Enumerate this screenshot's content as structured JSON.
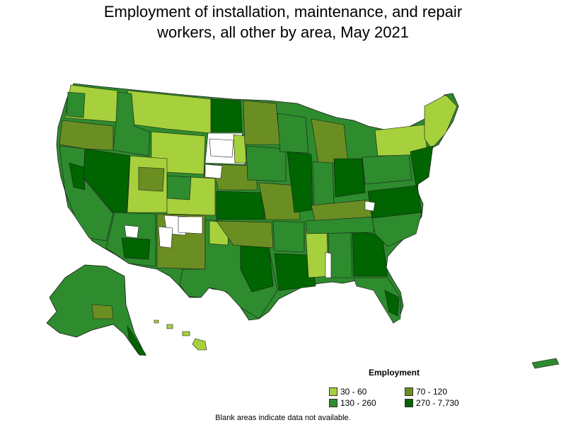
{
  "title_line1": "Employment of installation, maintenance, and repair",
  "title_line2": "workers, all other by area, May 2021",
  "legend": {
    "title": "Employment",
    "items": [
      {
        "label": "30 - 60",
        "color": "#a6d13c"
      },
      {
        "label": "70 - 120",
        "color": "#6b8e23"
      },
      {
        "label": "130 - 260",
        "color": "#2e8b2e"
      },
      {
        "label": "270 - 7,730",
        "color": "#006400"
      }
    ]
  },
  "footnote": "Blank areas indicate data not available.",
  "colors": {
    "c1": "#a6d13c",
    "c2": "#6b8e23",
    "c3": "#2e8b2e",
    "c4": "#006400",
    "blank": "#ffffff",
    "border": "#1a1a1a"
  }
}
